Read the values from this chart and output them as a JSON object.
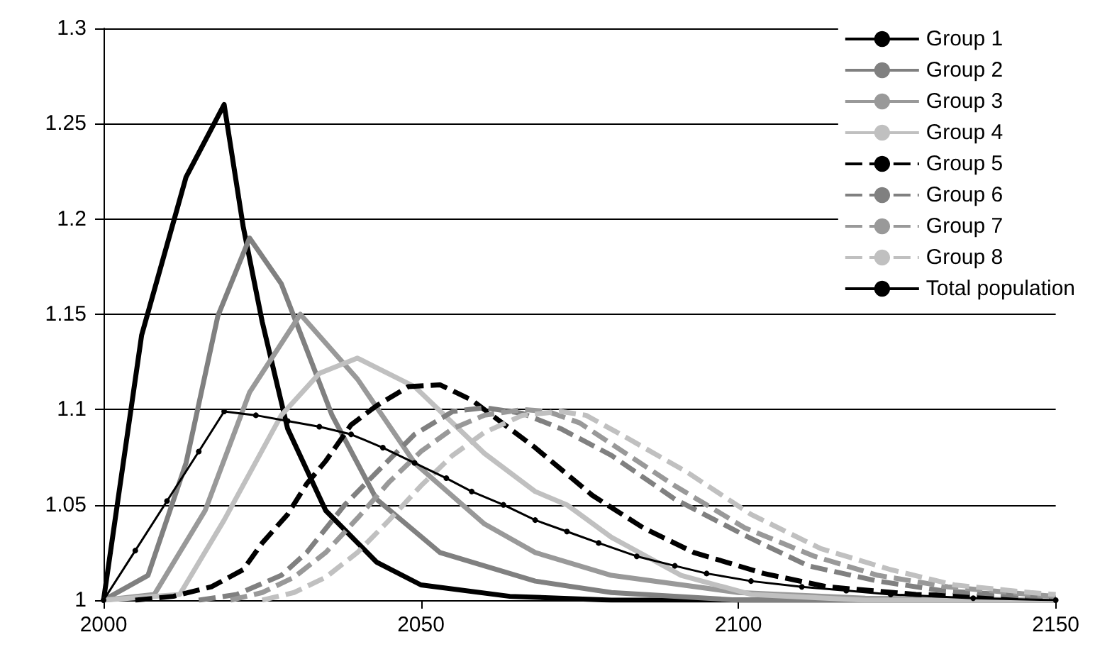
{
  "chart_data": {
    "type": "line",
    "xlim": [
      2000,
      2150
    ],
    "xticks": [
      2000,
      2050,
      2100,
      2150
    ],
    "ylim": [
      1,
      1.3
    ],
    "yticks": [
      1,
      1.05,
      1.1,
      1.15,
      1.2,
      1.25,
      1.3
    ],
    "grid": "y",
    "legend": "top right",
    "marker": "none",
    "line_style": "solid",
    "series": [
      {
        "name": "Group 1",
        "color": "#000000",
        "x": [
          2000,
          2006,
          2013,
          2019,
          2022,
          2025,
          2029,
          2035,
          2043,
          2050,
          2064,
          2080,
          2150
        ],
        "values": [
          1,
          1.139,
          1.222,
          1.26,
          1.196,
          1.146,
          1.09,
          1.047,
          1.02,
          1.008,
          1.002,
          1,
          1
        ]
      },
      {
        "name": "Group 2",
        "color": "#808080",
        "x": [
          2000,
          2007,
          2013,
          2018,
          2023,
          2028,
          2036,
          2043,
          2053,
          2068,
          2080,
          2100,
          2150
        ],
        "values": [
          1,
          1.013,
          1.072,
          1.149,
          1.19,
          1.166,
          1.097,
          1.053,
          1.025,
          1.01,
          1.004,
          1,
          1
        ]
      },
      {
        "name": "Group 3",
        "color": "#999999",
        "x": [
          2000,
          2008,
          2016,
          2023,
          2031,
          2040,
          2049,
          2060,
          2068,
          2080,
          2100,
          2120,
          2150
        ],
        "values": [
          1,
          1.003,
          1.047,
          1.109,
          1.15,
          1.116,
          1.072,
          1.04,
          1.025,
          1.013,
          1.004,
          1.001,
          1
        ]
      },
      {
        "name": "Group 4",
        "color": "#c0c0c0",
        "x": [
          2000,
          2012,
          2019,
          2028,
          2034,
          2040,
          2049,
          2060,
          2068,
          2073,
          2080,
          2091,
          2102,
          2120,
          2150
        ],
        "values": [
          1,
          1.003,
          1.042,
          1.097,
          1.119,
          1.127,
          1.112,
          1.077,
          1.057,
          1.05,
          1.033,
          1.013,
          1.003,
          1,
          1
        ]
      },
      {
        "name": "Group 5",
        "color": "#000000",
        "line_style": "dashed",
        "x": [
          2005,
          2011,
          2017,
          2022,
          2025,
          2029,
          2032,
          2035,
          2039,
          2043,
          2048,
          2053,
          2058,
          2068,
          2077,
          2085,
          2093,
          2104,
          2114,
          2128,
          2150
        ],
        "values": [
          1,
          1.002,
          1.007,
          1.016,
          1.03,
          1.045,
          1.061,
          1.073,
          1.092,
          1.102,
          1.112,
          1.113,
          1.105,
          1.08,
          1.055,
          1.038,
          1.025,
          1.014,
          1.007,
          1.003,
          1.001
        ]
      },
      {
        "name": "Group 6",
        "color": "#808080",
        "line_style": "dashed",
        "x": [
          2015,
          2021,
          2028,
          2032,
          2038,
          2043,
          2049,
          2055,
          2060,
          2066,
          2072,
          2080,
          2090,
          2101,
          2111,
          2122,
          2132,
          2146,
          2150
        ],
        "values": [
          1,
          1.003,
          1.013,
          1.025,
          1.05,
          1.067,
          1.087,
          1.099,
          1.101,
          1.098,
          1.09,
          1.076,
          1.053,
          1.034,
          1.018,
          1.01,
          1.005,
          1.002,
          1.001
        ]
      },
      {
        "name": "Group 7",
        "color": "#999999",
        "line_style": "dashed",
        "x": [
          2020,
          2025,
          2030,
          2035,
          2040,
          2045,
          2050,
          2055,
          2060,
          2066,
          2070,
          2075,
          2080,
          2090,
          2101,
          2112,
          2122,
          2133,
          2146,
          2150
        ],
        "values": [
          1,
          1.004,
          1.012,
          1.025,
          1.043,
          1.062,
          1.078,
          1.09,
          1.097,
          1.1,
          1.099,
          1.093,
          1.082,
          1.06,
          1.038,
          1.023,
          1.013,
          1.007,
          1.003,
          1.002
        ]
      },
      {
        "name": "Group 8",
        "color": "#c0c0c0",
        "line_style": "dashed",
        "x": [
          2025,
          2030,
          2035,
          2040,
          2045,
          2050,
          2055,
          2060,
          2066,
          2072,
          2076,
          2082,
          2092,
          2102,
          2113,
          2124,
          2134,
          2146,
          2150
        ],
        "values": [
          1,
          1.004,
          1.012,
          1.025,
          1.042,
          1.06,
          1.076,
          1.088,
          1.097,
          1.099,
          1.097,
          1.086,
          1.067,
          1.045,
          1.027,
          1.016,
          1.008,
          1.004,
          1.003
        ]
      },
      {
        "name": "Total population",
        "color": "#000000",
        "marker": "circle",
        "x": [
          2000,
          2005,
          2010,
          2015,
          2019,
          2024,
          2029,
          2034,
          2039,
          2044,
          2049,
          2054,
          2058,
          2063,
          2068,
          2073,
          2078,
          2084,
          2090,
          2095,
          2102,
          2110,
          2117,
          2124,
          2137,
          2150
        ],
        "values": [
          1,
          1.026,
          1.052,
          1.078,
          1.099,
          1.097,
          1.094,
          1.091,
          1.087,
          1.08,
          1.072,
          1.064,
          1.057,
          1.05,
          1.042,
          1.036,
          1.03,
          1.023,
          1.018,
          1.014,
          1.01,
          1.007,
          1.005,
          1.003,
          1.001,
          1
        ]
      }
    ]
  }
}
